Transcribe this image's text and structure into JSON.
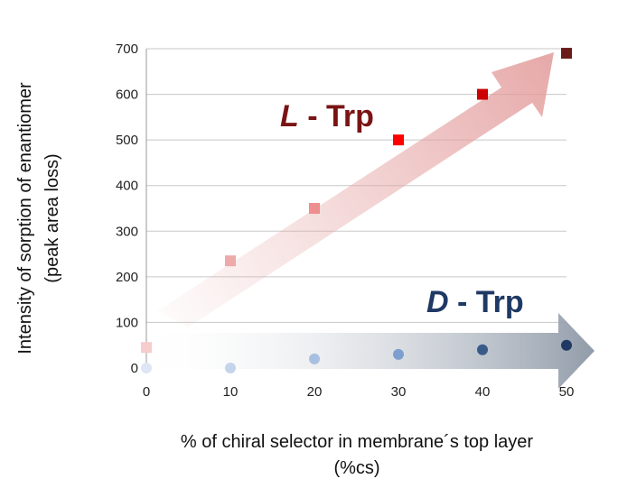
{
  "chart_data": {
    "type": "scatter",
    "xlabel": "% of chiral selector in membrane´s top layer (%cs)",
    "xlabel_lines": [
      "% of chiral selector in membrane´s top layer",
      "(%cs)"
    ],
    "ylabel": "Intensity of sorption of enantiomer (peak area loss)",
    "ylabel_lines": [
      "Intensity of sorption of enantiomer",
      "(peak area loss)"
    ],
    "xlim": [
      0,
      50
    ],
    "ylim": [
      0,
      700
    ],
    "x_ticks": [
      0,
      10,
      20,
      30,
      40,
      50
    ],
    "y_ticks": [
      0,
      100,
      200,
      300,
      400,
      500,
      600,
      700
    ],
    "grid": "horizontal",
    "series": [
      {
        "name": "L - Trp",
        "name_italic": "L",
        "name_rest": " - Trp",
        "marker": "square",
        "label_color": "#7a1414",
        "x": [
          0,
          10,
          20,
          30,
          40,
          50
        ],
        "y": [
          45,
          235,
          350,
          500,
          600,
          690
        ],
        "colors": [
          "#f6cccc",
          "#eeaaaa",
          "#ee8e8e",
          "#ff0000",
          "#cc0000",
          "#6b1a1a"
        ]
      },
      {
        "name": "D - Trp",
        "name_italic": "D",
        "name_rest": " - Trp",
        "marker": "circle",
        "label_color": "#1f3864",
        "x": [
          0,
          10,
          20,
          30,
          40,
          50
        ],
        "y": [
          0,
          0,
          20,
          30,
          40,
          50
        ],
        "colors": [
          "#dce6f4",
          "#c4d4ea",
          "#a8c0e0",
          "#7d9fcf",
          "#3a5a8a",
          "#1f3864"
        ]
      }
    ]
  }
}
